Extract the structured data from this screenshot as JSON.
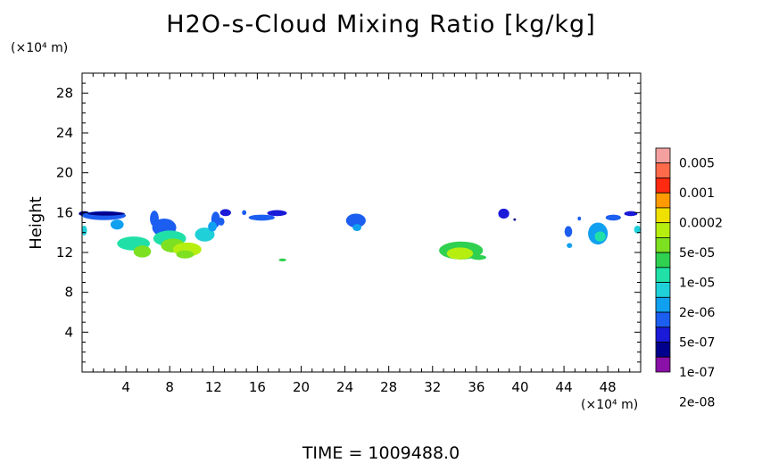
{
  "chart_data": {
    "type": "heatmap",
    "title": "H2O-s-Cloud Mixing Ratio [kg/kg]",
    "ylabel": "Height",
    "y_unit": "(×10⁴ m)",
    "x_unit": "(×10⁴ m)",
    "footer": "TIME  =  1009488.0",
    "xlim": [
      0,
      51
    ],
    "ylim": [
      0,
      30
    ],
    "xticks": [
      4,
      8,
      12,
      16,
      20,
      24,
      28,
      32,
      36,
      40,
      44,
      48
    ],
    "yticks": [
      4,
      8,
      12,
      16,
      20,
      24,
      28
    ],
    "colorbar": {
      "labels": [
        "0.005",
        "0.001",
        "0.0002",
        "5e-05",
        "1e-05",
        "2e-06",
        "5e-07",
        "1e-07",
        "2e-08"
      ],
      "colors": [
        "#f4a0a0",
        "#ff6a4a",
        "#ff2a10",
        "#ff9a00",
        "#f0e000",
        "#b6ee10",
        "#7de020",
        "#30d050",
        "#20e0a8",
        "#20d0d8",
        "#10a0f0",
        "#1c5ef0",
        "#1a1ad8",
        "#00008c",
        "#8a10a8"
      ]
    },
    "regions": [
      {
        "x": 0.2,
        "y": 15.9,
        "rx": 0.5,
        "ry": 0.25,
        "level": 13
      },
      {
        "x": 2.0,
        "y": 15.7,
        "rx": 2.0,
        "ry": 0.45,
        "level": 11
      },
      {
        "x": 2.2,
        "y": 15.9,
        "rx": 1.7,
        "ry": 0.2,
        "level": 13
      },
      {
        "x": 0.2,
        "y": 14.2,
        "rx": 0.25,
        "ry": 0.5,
        "level": 9
      },
      {
        "x": 3.2,
        "y": 14.8,
        "rx": 0.6,
        "ry": 0.5,
        "level": 10
      },
      {
        "x": 4.7,
        "y": 12.9,
        "rx": 1.5,
        "ry": 0.7,
        "level": 8
      },
      {
        "x": 5.5,
        "y": 12.1,
        "rx": 0.8,
        "ry": 0.6,
        "level": 6
      },
      {
        "x": 6.6,
        "y": 15.4,
        "rx": 0.4,
        "ry": 0.8,
        "level": 11
      },
      {
        "x": 7.5,
        "y": 14.5,
        "rx": 1.1,
        "ry": 0.9,
        "level": 11
      },
      {
        "x": 8.0,
        "y": 13.4,
        "rx": 1.5,
        "ry": 0.8,
        "level": 8
      },
      {
        "x": 8.3,
        "y": 12.7,
        "rx": 1.1,
        "ry": 0.7,
        "level": 6
      },
      {
        "x": 9.6,
        "y": 12.3,
        "rx": 1.3,
        "ry": 0.7,
        "level": 5
      },
      {
        "x": 9.4,
        "y": 11.8,
        "rx": 0.8,
        "ry": 0.4,
        "level": 6
      },
      {
        "x": 11.2,
        "y": 13.8,
        "rx": 0.9,
        "ry": 0.7,
        "level": 9
      },
      {
        "x": 12.2,
        "y": 15.3,
        "rx": 0.4,
        "ry": 0.8,
        "level": 11
      },
      {
        "x": 11.9,
        "y": 14.6,
        "rx": 0.4,
        "ry": 0.5,
        "level": 10
      },
      {
        "x": 13.1,
        "y": 16.0,
        "rx": 0.5,
        "ry": 0.35,
        "level": 12
      },
      {
        "x": 12.7,
        "y": 15.1,
        "rx": 0.3,
        "ry": 0.4,
        "level": 11
      },
      {
        "x": 14.8,
        "y": 16.0,
        "rx": 0.2,
        "ry": 0.25,
        "level": 11
      },
      {
        "x": 16.4,
        "y": 15.5,
        "rx": 1.2,
        "ry": 0.3,
        "level": 11
      },
      {
        "x": 17.8,
        "y": 15.95,
        "rx": 0.9,
        "ry": 0.3,
        "level": 12
      },
      {
        "x": 18.3,
        "y": 11.25,
        "rx": 0.35,
        "ry": 0.15,
        "level": 7
      },
      {
        "x": 25.0,
        "y": 15.2,
        "rx": 0.9,
        "ry": 0.7,
        "level": 11
      },
      {
        "x": 25.1,
        "y": 14.5,
        "rx": 0.4,
        "ry": 0.35,
        "level": 10
      },
      {
        "x": 34.6,
        "y": 12.2,
        "rx": 2.0,
        "ry": 0.9,
        "level": 7
      },
      {
        "x": 34.5,
        "y": 11.9,
        "rx": 1.2,
        "ry": 0.6,
        "level": 5
      },
      {
        "x": 36.2,
        "y": 11.5,
        "rx": 0.7,
        "ry": 0.25,
        "level": 7
      },
      {
        "x": 38.5,
        "y": 15.9,
        "rx": 0.5,
        "ry": 0.5,
        "level": 12
      },
      {
        "x": 39.5,
        "y": 15.3,
        "rx": 0.12,
        "ry": 0.12,
        "level": 13
      },
      {
        "x": 44.4,
        "y": 14.1,
        "rx": 0.35,
        "ry": 0.55,
        "level": 11
      },
      {
        "x": 44.5,
        "y": 12.7,
        "rx": 0.25,
        "ry": 0.25,
        "level": 10
      },
      {
        "x": 45.4,
        "y": 15.4,
        "rx": 0.15,
        "ry": 0.2,
        "level": 11
      },
      {
        "x": 47.1,
        "y": 13.9,
        "rx": 0.9,
        "ry": 1.1,
        "level": 10
      },
      {
        "x": 47.3,
        "y": 13.6,
        "rx": 0.5,
        "ry": 0.5,
        "level": 8
      },
      {
        "x": 48.5,
        "y": 15.5,
        "rx": 0.7,
        "ry": 0.3,
        "level": 11
      },
      {
        "x": 50.1,
        "y": 15.9,
        "rx": 0.6,
        "ry": 0.25,
        "level": 12
      },
      {
        "x": 50.7,
        "y": 14.3,
        "rx": 0.3,
        "ry": 0.4,
        "level": 9
      }
    ]
  }
}
